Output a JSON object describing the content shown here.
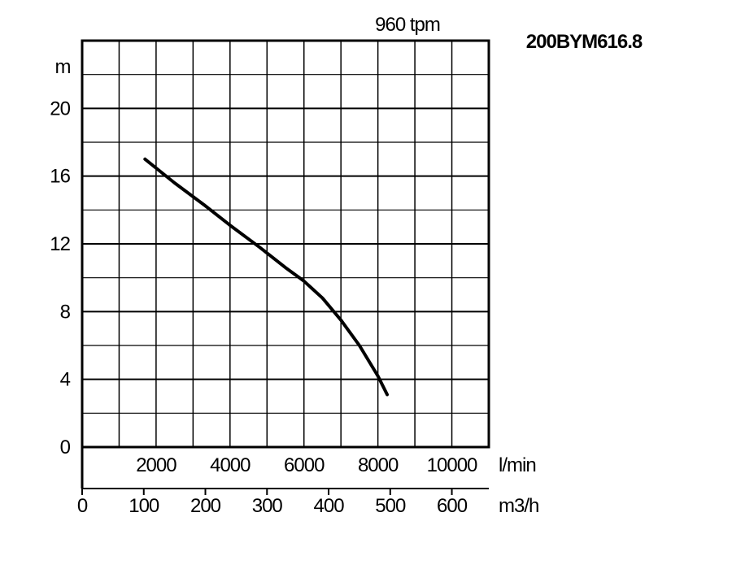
{
  "chart_data": {
    "type": "line",
    "title": "200BYM616.8",
    "subtitle": "960 tpm",
    "ylabel": "m",
    "ylim": [
      0,
      24
    ],
    "yticks": [
      0,
      4,
      8,
      12,
      16,
      20
    ],
    "grid": true,
    "x_axes": [
      {
        "unit": "l/min",
        "ticks": [
          2000,
          4000,
          6000,
          8000,
          10000
        ],
        "range": [
          0,
          11000
        ]
      },
      {
        "unit": "m3/h",
        "ticks": [
          0,
          100,
          200,
          300,
          400,
          500,
          600
        ],
        "range": [
          0,
          660
        ]
      }
    ],
    "series": [
      {
        "x_unit": "l/min",
        "x": [
          1700,
          2500,
          3300,
          4000,
          4800,
          5500,
          6000,
          6500,
          7000,
          7500,
          8000,
          8250
        ],
        "y": [
          17,
          15.6,
          14.3,
          13.1,
          11.8,
          10.6,
          9.8,
          8.8,
          7.5,
          6.0,
          4.2,
          3.1
        ]
      }
    ]
  }
}
